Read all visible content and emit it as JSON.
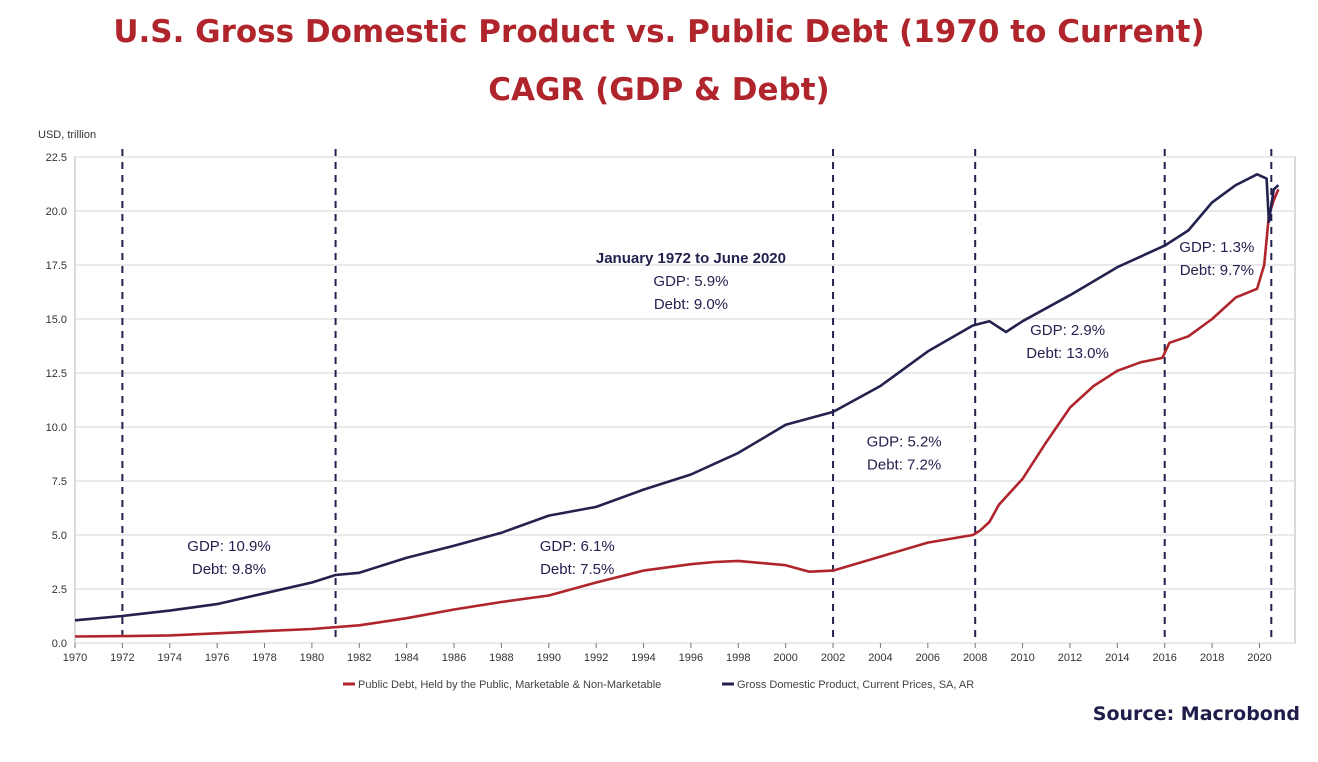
{
  "title_line1": "U.S. Gross Domestic Product vs. Public Debt (1970 to Current)",
  "title_line2": "CAGR (GDP & Debt)",
  "source": "Source: Macrobond",
  "colors": {
    "title": "#b0242c",
    "gdp": "#23224f",
    "debt": "#b0242c",
    "grid": "#d4d4d4",
    "annotation": "#23224f"
  },
  "chart_data": {
    "type": "line",
    "ylabel": "USD, trillion",
    "ylim": [
      0,
      22.5
    ],
    "xlim": [
      1970,
      2021.5
    ],
    "yticks": [
      "0.0",
      "2.5",
      "5.0",
      "7.5",
      "10.0",
      "12.5",
      "15.0",
      "17.5",
      "20.0",
      "22.5"
    ],
    "xticks": [
      "1970",
      "1972",
      "1974",
      "1976",
      "1978",
      "1980",
      "1982",
      "1984",
      "1986",
      "1988",
      "1990",
      "1992",
      "1994",
      "1996",
      "1998",
      "2000",
      "2002",
      "2004",
      "2006",
      "2008",
      "2010",
      "2012",
      "2014",
      "2016",
      "2018",
      "2020"
    ],
    "grid": true,
    "legend_position": "bottom",
    "vertical_lines": [
      1972,
      1981,
      2002,
      2008,
      2016,
      2020.5
    ],
    "series": [
      {
        "name": "Public Debt, Held by the Public, Marketable & Non-Marketable",
        "color": "#b0242c",
        "x": [
          1970,
          1972,
          1974,
          1976,
          1978,
          1980,
          1982,
          1984,
          1986,
          1988,
          1990,
          1992,
          1994,
          1996,
          1997,
          1998,
          2000,
          2001,
          2002,
          2004,
          2006,
          2007.9,
          2008.2,
          2008.6,
          2009,
          2010,
          2011,
          2012,
          2013,
          2014,
          2015,
          2015.9,
          2016.2,
          2017,
          2018,
          2019,
          2019.9,
          2020.2,
          2020.4,
          2020.6,
          2020.8
        ],
        "y": [
          0.3,
          0.32,
          0.35,
          0.45,
          0.55,
          0.65,
          0.82,
          1.15,
          1.55,
          1.9,
          2.2,
          2.8,
          3.35,
          3.65,
          3.75,
          3.8,
          3.6,
          3.3,
          3.35,
          4.0,
          4.65,
          5.0,
          5.2,
          5.6,
          6.4,
          7.6,
          9.3,
          10.9,
          11.9,
          12.6,
          13.0,
          13.2,
          13.9,
          14.2,
          15.0,
          16.0,
          16.4,
          17.5,
          19.8,
          20.5,
          21.0
        ]
      },
      {
        "name": "Gross Domestic Product, Current Prices, SA, AR",
        "color": "#23224f",
        "x": [
          1970,
          1972,
          1974,
          1976,
          1978,
          1980,
          1981,
          1982,
          1984,
          1986,
          1988,
          1990,
          1992,
          1994,
          1996,
          1998,
          2000,
          2002,
          2004,
          2006,
          2007.9,
          2008.6,
          2009.3,
          2010,
          2012,
          2014,
          2016,
          2017,
          2018,
          2019,
          2019.9,
          2020.3,
          2020.4,
          2020.6,
          2020.8
        ],
        "y": [
          1.05,
          1.25,
          1.5,
          1.8,
          2.3,
          2.8,
          3.15,
          3.25,
          3.95,
          4.5,
          5.1,
          5.9,
          6.3,
          7.1,
          7.8,
          8.8,
          10.1,
          10.7,
          11.9,
          13.5,
          14.7,
          14.9,
          14.4,
          14.9,
          16.1,
          17.4,
          18.4,
          19.1,
          20.4,
          21.2,
          21.7,
          21.5,
          19.5,
          21.0,
          21.2
        ]
      }
    ],
    "annotations": [
      {
        "lines": [
          "January 1972 to June 2020",
          "GDP: 5.9%",
          "Debt: 9.0%"
        ],
        "x": 1996,
        "y": 17.6,
        "bold_first": true
      },
      {
        "lines": [
          "GDP: 10.9%",
          "Debt: 9.8%"
        ],
        "x": 1976.5,
        "y": 4.25,
        "bold_first": false
      },
      {
        "lines": [
          "GDP: 6.1%",
          "Debt: 7.5%"
        ],
        "x": 1991.2,
        "y": 4.25,
        "bold_first": false
      },
      {
        "lines": [
          "GDP: 5.2%",
          "Debt: 7.2%"
        ],
        "x": 2005,
        "y": 9.1,
        "bold_first": false
      },
      {
        "lines": [
          "GDP: 2.9%",
          "Debt: 13.0%"
        ],
        "x": 2011.9,
        "y": 14.25,
        "bold_first": false
      },
      {
        "lines": [
          "GDP: 1.3%",
          "Debt: 9.7%"
        ],
        "x": 2018.2,
        "y": 18.1,
        "bold_first": false
      }
    ]
  }
}
